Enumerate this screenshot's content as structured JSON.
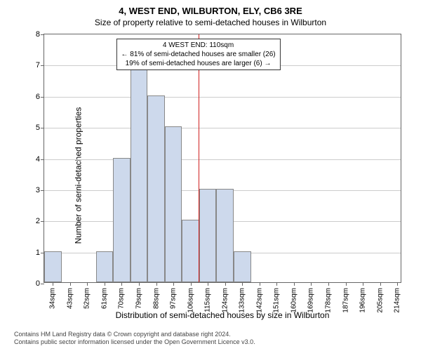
{
  "title_line1": "4, WEST END, WILBURTON, ELY, CB6 3RE",
  "title_line2": "Size of property relative to semi-detached houses in Wilburton",
  "ylabel": "Number of semi-detached properties",
  "xlabel": "Distribution of semi-detached houses by size in Wilburton",
  "credits_line1": "Contains HM Land Registry data © Crown copyright and database right 2024.",
  "credits_line2": "Contains public sector information licensed under the Open Government Licence v3.0.",
  "annotation": {
    "line1": "4 WEST END: 110sqm",
    "line2": "← 81% of semi-detached houses are smaller (26)",
    "line3": "19% of semi-detached houses are larger (6) →",
    "x_position": 110
  },
  "chart": {
    "type": "histogram",
    "xlim": [
      29.5,
      216.5
    ],
    "ylim": [
      0,
      8
    ],
    "ytick_step": 1,
    "xtick_start": 34,
    "xtick_step": 9,
    "xtick_count": 21,
    "xtick_suffix": "sqm",
    "bar_color": "#cdd9ec",
    "bar_border": "#888888",
    "grid_color": "#cccccc",
    "axis_color": "#666666",
    "background_color": "#ffffff",
    "vline_color": "#d02020",
    "vline_x": 110,
    "bin_width": 9,
    "bars": [
      {
        "x_left": 29.5,
        "count": 1
      },
      {
        "x_left": 56.5,
        "count": 1
      },
      {
        "x_left": 65.5,
        "count": 4
      },
      {
        "x_left": 74.5,
        "count": 7
      },
      {
        "x_left": 83.5,
        "count": 6
      },
      {
        "x_left": 92.5,
        "count": 5
      },
      {
        "x_left": 101.5,
        "count": 2
      },
      {
        "x_left": 110.5,
        "count": 3
      },
      {
        "x_left": 119.5,
        "count": 3
      },
      {
        "x_left": 128.5,
        "count": 1
      }
    ],
    "label_fontsize": 12,
    "tick_fontsize": 11
  }
}
